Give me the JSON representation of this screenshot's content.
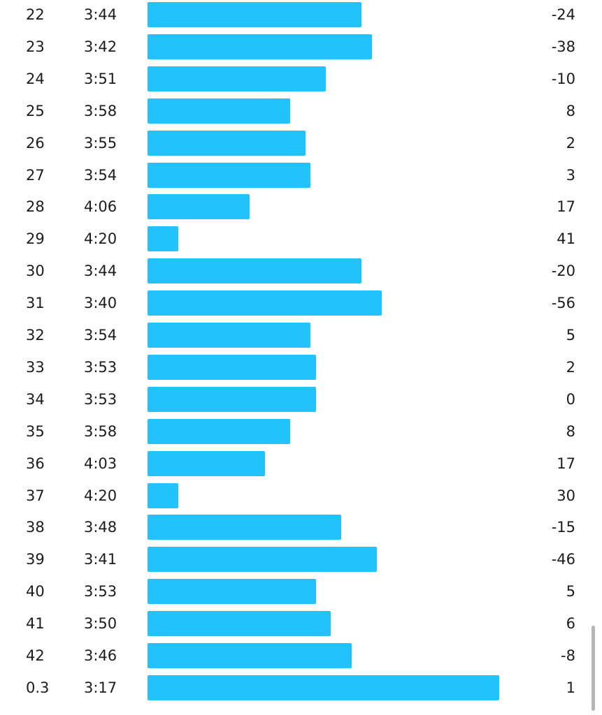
{
  "splits": [
    {
      "km": "22",
      "pace": "3:44",
      "elev": "-24"
    },
    {
      "km": "23",
      "pace": "3:42",
      "elev": "-38"
    },
    {
      "km": "24",
      "pace": "3:51",
      "elev": "-10"
    },
    {
      "km": "25",
      "pace": "3:58",
      "elev": "8"
    },
    {
      "km": "26",
      "pace": "3:55",
      "elev": "2"
    },
    {
      "km": "27",
      "pace": "3:54",
      "elev": "3"
    },
    {
      "km": "28",
      "pace": "4:06",
      "elev": "17"
    },
    {
      "km": "29",
      "pace": "4:20",
      "elev": "41"
    },
    {
      "km": "30",
      "pace": "3:44",
      "elev": "-20"
    },
    {
      "km": "31",
      "pace": "3:40",
      "elev": "-56"
    },
    {
      "km": "32",
      "pace": "3:54",
      "elev": "5"
    },
    {
      "km": "33",
      "pace": "3:53",
      "elev": "2"
    },
    {
      "km": "34",
      "pace": "3:53",
      "elev": "0"
    },
    {
      "km": "35",
      "pace": "3:58",
      "elev": "8"
    },
    {
      "km": "36",
      "pace": "4:03",
      "elev": "17"
    },
    {
      "km": "37",
      "pace": "4:20",
      "elev": "30"
    },
    {
      "km": "38",
      "pace": "3:48",
      "elev": "-15"
    },
    {
      "km": "39",
      "pace": "3:41",
      "elev": "-46"
    },
    {
      "km": "40",
      "pace": "3:53",
      "elev": "5"
    },
    {
      "km": "41",
      "pace": "3:50",
      "elev": "6"
    },
    {
      "km": "42",
      "pace": "3:46",
      "elev": "-8"
    },
    {
      "km": "0.3",
      "pace": "3:17",
      "elev": "1"
    }
  ],
  "bar_color": "#22c3fd",
  "scroll": {
    "position_fraction": 0.88
  }
}
